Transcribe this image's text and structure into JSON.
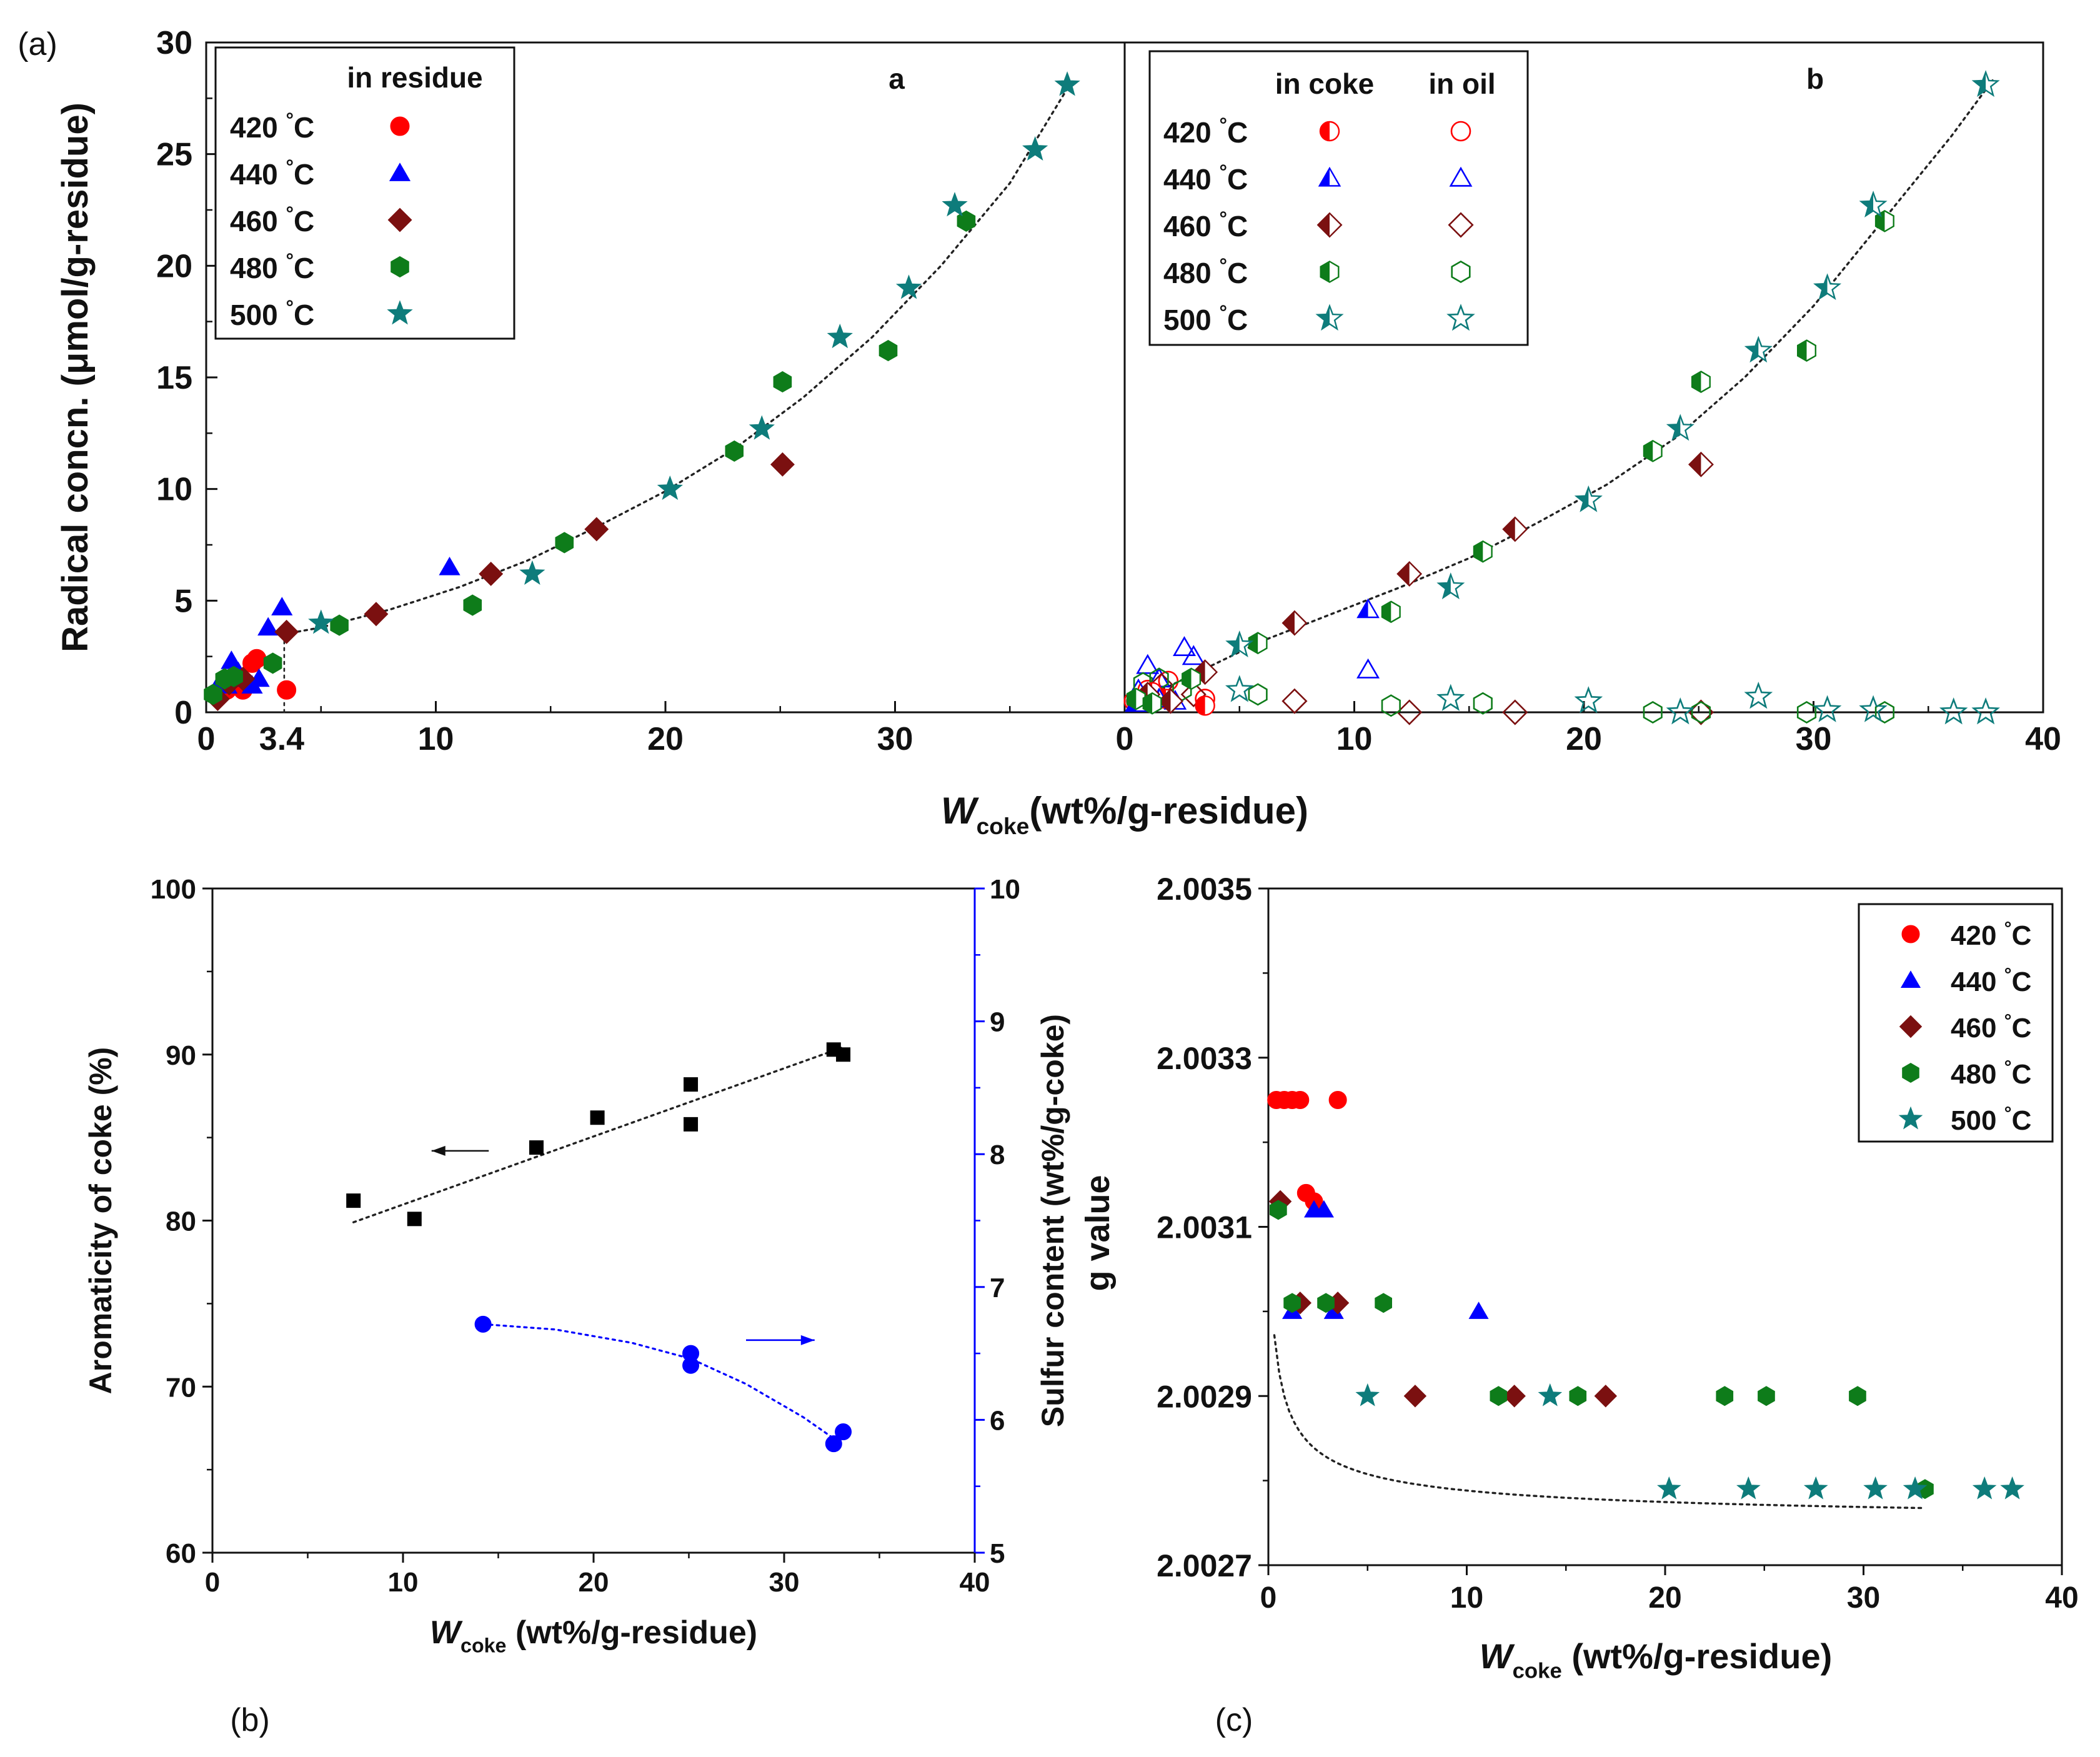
{
  "chart_data": [
    {
      "panel_label": "(a)",
      "type": "scatter",
      "subplots": [
        {
          "tag": "a",
          "xlim": [
            0,
            40
          ],
          "ylim": [
            0,
            30
          ],
          "xticks": [
            0,
            10,
            20,
            30
          ],
          "extra_xtick": 3.4,
          "extra_xtick_label": "3.4",
          "yticks": [
            0,
            5,
            10,
            15,
            20,
            25,
            30
          ],
          "legend_header": "in residue",
          "series": [
            {
              "name": "420 °C",
              "temp": "420",
              "color": "#ff0000",
              "marker": "circle",
              "x": [
                0.5,
                0.9,
                1.3,
                1.6,
                2.0,
                2.2,
                3.5
              ],
              "y": [
                0.7,
                1.0,
                1.3,
                1.0,
                2.2,
                2.4,
                1.0
              ]
            },
            {
              "name": "440 °C",
              "temp": "440",
              "color": "#0000ff",
              "marker": "triangle",
              "x": [
                0.4,
                0.9,
                1.1,
                1.4,
                1.6,
                2.0,
                2.3,
                2.7,
                3.3,
                10.6
              ],
              "y": [
                1.0,
                1.2,
                2.3,
                1.8,
                1.5,
                1.2,
                1.5,
                3.8,
                4.7,
                6.5
              ]
            },
            {
              "name": "460 °C",
              "temp": "460",
              "color": "#7b1010",
              "marker": "diamond",
              "x": [
                0.5,
                1.0,
                1.6,
                3.5,
                7.4,
                12.4,
                17.0,
                25.1
              ],
              "y": [
                0.6,
                1.3,
                1.5,
                3.6,
                4.4,
                6.2,
                8.2,
                11.1
              ]
            },
            {
              "name": "480 °C",
              "temp": "480",
              "color": "#0e7c1a",
              "marker": "hexagon",
              "x": [
                0.3,
                0.8,
                1.2,
                2.9,
                5.8,
                11.6,
                15.6,
                23.0,
                25.1,
                29.7,
                33.1
              ],
              "y": [
                0.8,
                1.5,
                1.6,
                2.2,
                3.9,
                4.8,
                7.6,
                11.7,
                14.8,
                16.2,
                22.0
              ]
            },
            {
              "name": "500 °C",
              "temp": "500",
              "color": "#0e7c7b",
              "marker": "star",
              "x": [
                5.0,
                14.2,
                20.2,
                24.2,
                27.6,
                30.6,
                32.6,
                36.1,
                37.5
              ],
              "y": [
                4.0,
                6.2,
                10.0,
                12.7,
                16.8,
                19.0,
                22.7,
                25.2,
                28.1
              ]
            }
          ]
        },
        {
          "tag": "b",
          "xlim": [
            0,
            40
          ],
          "ylim": [
            0,
            30
          ],
          "xticks": [
            0,
            10,
            20,
            30,
            40
          ],
          "legend_header_coke": "in coke",
          "legend_header_oil": "in oil",
          "series_coke": [
            {
              "name": "420 °C",
              "temp": "420",
              "color": "#ff0000",
              "marker": "circle",
              "x": [
                0.5,
                1.2,
                1.8,
                3.5
              ],
              "y": [
                0.5,
                0.9,
                0.6,
                0.3
              ]
            },
            {
              "name": "440 °C",
              "temp": "440",
              "color": "#0000ff",
              "marker": "triangle",
              "x": [
                0.5,
                1.5,
                2.2,
                10.6
              ],
              "y": [
                0.4,
                0.6,
                0.5,
                4.6
              ]
            },
            {
              "name": "460 °C",
              "temp": "460",
              "color": "#7b1010",
              "marker": "diamond",
              "x": [
                1.0,
                2.0,
                3.5,
                7.4,
                12.4,
                17.0,
                25.1
              ],
              "y": [
                0.8,
                0.5,
                1.8,
                4.0,
                6.2,
                8.2,
                11.1
              ]
            },
            {
              "name": "480 °C",
              "temp": "480",
              "color": "#0e7c1a",
              "marker": "hexagon",
              "x": [
                0.5,
                1.2,
                2.9,
                5.8,
                11.6,
                15.6,
                23.0,
                25.1,
                29.7,
                33.1
              ],
              "y": [
                0.6,
                0.4,
                1.5,
                3.1,
                4.5,
                7.2,
                11.7,
                14.8,
                16.2,
                22.0
              ]
            },
            {
              "name": "500 °C",
              "temp": "500",
              "color": "#0e7c7b",
              "marker": "star",
              "x": [
                5.0,
                14.2,
                20.2,
                24.2,
                27.6,
                30.6,
                32.6,
                37.5
              ],
              "y": [
                3.0,
                5.6,
                9.5,
                12.7,
                16.2,
                19.0,
                22.7,
                28.1
              ]
            }
          ],
          "series_oil": [
            {
              "name": "420 °C",
              "temp": "420",
              "color": "#ff0000",
              "marker": "circle",
              "x": [
                0.4,
                1.0,
                1.9,
                3.5
              ],
              "y": [
                0.5,
                1.0,
                1.4,
                0.6
              ]
            },
            {
              "name": "440 °C",
              "temp": "440",
              "color": "#0000ff",
              "marker": "triangle",
              "x": [
                0.6,
                1.0,
                1.5,
                2.6,
                3.0,
                10.6
              ],
              "y": [
                1.0,
                2.1,
                1.5,
                2.9,
                2.5,
                1.9
              ]
            },
            {
              "name": "460 °C",
              "temp": "460",
              "color": "#7b1010",
              "marker": "diamond",
              "x": [
                1.6,
                3.0,
                7.4,
                12.4,
                17.0,
                25.1
              ],
              "y": [
                1.2,
                0.8,
                0.5,
                0.0,
                0.0,
                0.0
              ]
            },
            {
              "name": "480 °C",
              "temp": "480",
              "color": "#0e7c1a",
              "marker": "hexagon",
              "x": [
                0.8,
                1.5,
                2.5,
                5.8,
                11.6,
                15.6,
                23.0,
                25.1,
                29.7,
                33.1
              ],
              "y": [
                1.3,
                1.5,
                1.0,
                0.8,
                0.3,
                0.4,
                0.0,
                0.0,
                0.0,
                0.0
              ]
            },
            {
              "name": "500 °C",
              "temp": "500",
              "color": "#0e7c7b",
              "marker": "star",
              "x": [
                5.0,
                14.2,
                20.2,
                24.2,
                27.6,
                30.6,
                32.6,
                36.1,
                37.5
              ],
              "y": [
                1.0,
                0.6,
                0.5,
                0.0,
                0.7,
                0.1,
                0.1,
                0.0,
                0.0
              ]
            }
          ]
        }
      ],
      "ylabel": "Radical concn. (μmol/g-residue)",
      "xlabel_prefix": "W",
      "xlabel_sub": "coke",
      "xlabel_suffix": "(wt%/g-residue)",
      "trend": "dotted curve through combined data"
    },
    {
      "panel_label": "(b)",
      "type": "scatter",
      "xlim": [
        0,
        40
      ],
      "xticks": [
        0,
        10,
        20,
        30,
        40
      ],
      "ylim_left": [
        60,
        100
      ],
      "yticks_left": [
        60,
        70,
        80,
        90,
        100
      ],
      "ylim_right": [
        5,
        10
      ],
      "yticks_right": [
        5,
        6,
        7,
        8,
        9,
        10
      ],
      "ylabel_left": "Aromaticity of coke (%)",
      "ylabel_right": "Sulfur content (wt%/g-coke)",
      "xlabel_prefix": "W",
      "xlabel_sub": "coke",
      "xlabel_suffix": " (wt%/g-residue)",
      "series": [
        {
          "name": "Aromaticity",
          "axis": "left",
          "color": "#000000",
          "marker": "square",
          "x": [
            7.4,
            10.6,
            17.0,
            20.2,
            25.1,
            25.1,
            32.6,
            33.1
          ],
          "y": [
            81.2,
            80.1,
            84.4,
            86.2,
            88.2,
            85.8,
            90.3,
            90.0
          ]
        },
        {
          "name": "Sulfur content",
          "axis": "right",
          "color": "#0000ff",
          "marker": "circle",
          "x": [
            14.2,
            25.1,
            25.1,
            32.6,
            33.1
          ],
          "y": [
            6.72,
            6.5,
            6.41,
            5.82,
            5.91
          ]
        }
      ]
    },
    {
      "panel_label": "(c)",
      "type": "scatter",
      "xlim": [
        0,
        40
      ],
      "xticks": [
        0,
        10,
        20,
        30,
        40
      ],
      "ylim": [
        2.0027,
        2.0035
      ],
      "yticks": [
        "2.0027",
        "2.0029",
        "2.0031",
        "2.0033",
        "2.0035"
      ],
      "ylabel": "g value",
      "xlabel_prefix": "W",
      "xlabel_sub": "coke",
      "xlabel_suffix": " (wt%/g-residue)",
      "series": [
        {
          "name": "420 °C",
          "temp": "420",
          "color": "#ff0000",
          "marker": "circle",
          "x": [
            0.4,
            0.8,
            1.2,
            1.6,
            1.9,
            2.3,
            3.5
          ],
          "y": [
            2.00325,
            2.00325,
            2.00325,
            2.00325,
            2.00314,
            2.00313,
            2.00325
          ]
        },
        {
          "name": "440 °C",
          "temp": "440",
          "color": "#0000ff",
          "marker": "triangle",
          "x": [
            1.2,
            2.3,
            2.8,
            3.3,
            10.6
          ],
          "y": [
            2.003,
            2.00312,
            2.00312,
            2.003,
            2.003
          ]
        },
        {
          "name": "460 °C",
          "temp": "460",
          "color": "#7b1010",
          "marker": "diamond",
          "x": [
            0.6,
            1.6,
            3.5,
            7.4,
            12.4,
            17.0
          ],
          "y": [
            2.00313,
            2.00301,
            2.00301,
            2.0029,
            2.0029,
            2.0029
          ]
        },
        {
          "name": "480 °C",
          "temp": "480",
          "color": "#0e7c1a",
          "marker": "hexagon",
          "x": [
            0.5,
            1.2,
            2.9,
            5.8,
            11.6,
            15.6,
            23.0,
            25.1,
            29.7,
            33.1
          ],
          "y": [
            2.00312,
            2.00301,
            2.00301,
            2.00301,
            2.0029,
            2.0029,
            2.0029,
            2.0029,
            2.0029,
            2.00279
          ]
        },
        {
          "name": "500 °C",
          "temp": "500",
          "color": "#0e7c7b",
          "marker": "star",
          "x": [
            5.0,
            14.2,
            20.2,
            24.2,
            27.6,
            30.6,
            32.6,
            36.1,
            37.5
          ],
          "y": [
            2.0029,
            2.0029,
            2.00279,
            2.00279,
            2.00279,
            2.00279,
            2.00279,
            2.00279,
            2.00279
          ]
        }
      ],
      "legend_position": "top-right"
    }
  ],
  "legend_unit": "°C"
}
